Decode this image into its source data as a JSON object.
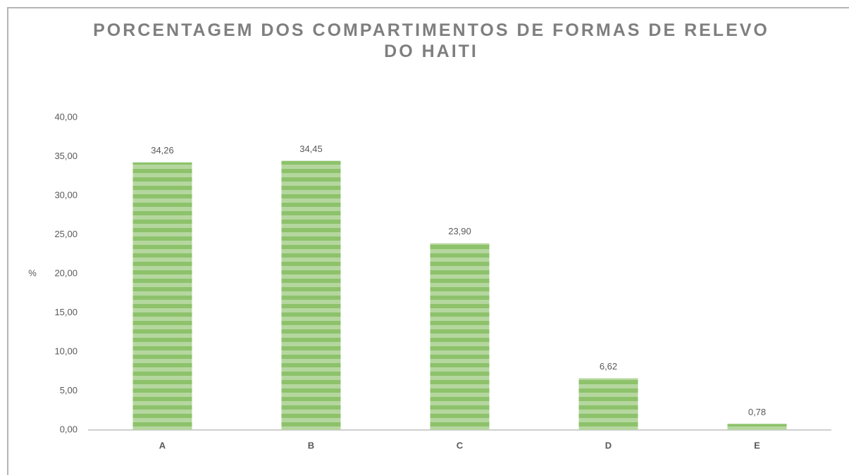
{
  "chart_data": {
    "type": "bar",
    "title": "PORCENTAGEM DOS COMPARTIMENTOS DE FORMAS DE RELEVO DO HAITI",
    "y_label": "%",
    "categories": [
      "A",
      "B",
      "C",
      "D",
      "E"
    ],
    "values": [
      34.26,
      34.45,
      23.9,
      6.62,
      0.78
    ],
    "value_labels": [
      "34,26",
      "34,45",
      "23,90",
      "6,62",
      "0,78"
    ],
    "color": "#8dc26b",
    "ylim": [
      0,
      40
    ],
    "yticks": [
      {
        "value": 0,
        "label": "0,00"
      },
      {
        "value": 5,
        "label": "5,00"
      },
      {
        "value": 10,
        "label": "10,00"
      },
      {
        "value": 15,
        "label": "15,00"
      },
      {
        "value": 20,
        "label": "20,00"
      },
      {
        "value": 25,
        "label": "25,00"
      },
      {
        "value": 30,
        "label": "30,00"
      },
      {
        "value": 35,
        "label": "35,00"
      },
      {
        "value": 40,
        "label": "40,00"
      }
    ],
    "grid": false
  }
}
